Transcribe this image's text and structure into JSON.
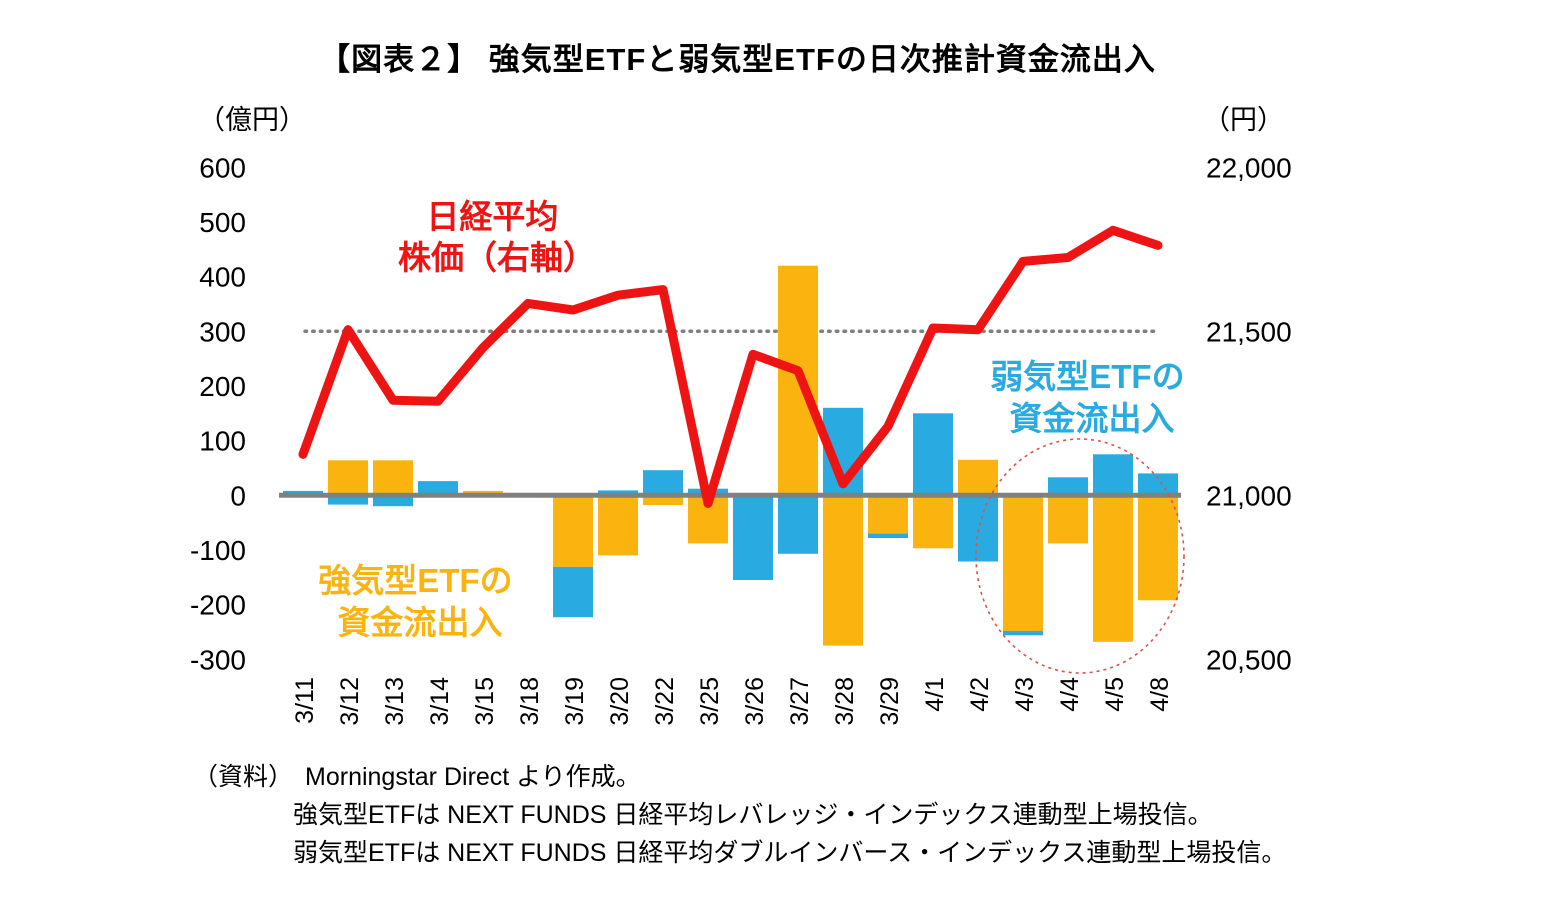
{
  "title": "【図表２】 強気型ETFと弱気型ETFの日次推計資金流出入",
  "axes": {
    "left_unit": "（億円）",
    "right_unit": "（円）"
  },
  "annotations": {
    "line_label": [
      "日経平均",
      "株価（右軸）"
    ],
    "bear_label": [
      "弱気型ETFの",
      "資金流出入"
    ],
    "bull_label": [
      "強気型ETFの",
      "資金流出入"
    ]
  },
  "footnotes": {
    "source_prefix": "（資料）",
    "lines": [
      "Morningstar Direct より作成。",
      "強気型ETFは NEXT FUNDS  日経平均レバレッジ・インデックス連動型上場投信。",
      "弱気型ETFは NEXT FUNDS  日経平均ダブルインバース・インデックス連動型上場投信。"
    ]
  },
  "colors": {
    "bull_bar": "#FBB40F",
    "bear_bar": "#29ABE2",
    "nikkei_line": "#EE1414",
    "zero_axis": "#808080",
    "reference_dotted": "#7F7F7F",
    "highlight_circle": "#DD5348",
    "text": "#000000"
  },
  "chart_data": {
    "type": "bar",
    "subtype": "stacked-bar-with-line-dual-axis",
    "title": "【図表２】 強気型ETFと弱気型ETFの日次推計資金流出入",
    "categories": [
      "3/11",
      "3/12",
      "3/13",
      "3/14",
      "3/15",
      "3/18",
      "3/19",
      "3/20",
      "3/22",
      "3/25",
      "3/26",
      "3/27",
      "3/28",
      "3/29",
      "4/1",
      "4/2",
      "4/3",
      "4/4",
      "4/5",
      "4/8"
    ],
    "series": [
      {
        "key": "bull",
        "name": "強気型ETFの資金流出入",
        "type": "bar",
        "axis": "left",
        "color": "#FBB40F",
        "values": [
          0,
          64,
          64,
          0,
          8,
          0,
          -131,
          -110,
          -18,
          -88,
          0,
          420,
          -275,
          -70,
          -97,
          65,
          -248,
          -88,
          -268,
          -192
        ]
      },
      {
        "key": "bear",
        "name": "弱気型ETFの資金流出入",
        "type": "bar",
        "axis": "left",
        "color": "#29ABE2",
        "values": [
          8,
          -17,
          -20,
          26,
          0,
          0,
          -92,
          9,
          46,
          12,
          -155,
          -107,
          160,
          -8,
          150,
          -121,
          -8,
          33,
          75,
          40
        ]
      },
      {
        "key": "nikkei",
        "name": "日経平均株価（右軸）",
        "type": "line",
        "axis": "right",
        "color": "#EE1414",
        "values": [
          21125,
          21505,
          21290,
          21287,
          21450,
          21585,
          21565,
          21610,
          21627,
          20975,
          21430,
          21380,
          21035,
          21210,
          21510,
          21505,
          21713,
          21725,
          21808,
          21762
        ]
      }
    ],
    "left_axis": {
      "unit": "億円",
      "range": [
        -300,
        600
      ],
      "ticks": [
        600,
        500,
        400,
        300,
        200,
        100,
        0,
        -100,
        -200,
        -300
      ]
    },
    "right_axis": {
      "unit": "円",
      "range": [
        20500,
        22000
      ],
      "ticks": [
        {
          "value": 22000,
          "label": "22,000"
        },
        {
          "value": 21500,
          "label": "21,500"
        },
        {
          "value": 21000,
          "label": "21,000"
        },
        {
          "value": 20500,
          "label": "20,500"
        }
      ]
    },
    "reference_line": {
      "left_value": 300,
      "right_value": 21500,
      "style": "dotted"
    },
    "highlight": {
      "shape": "dashed-ellipse",
      "around_dates": [
        "4/3",
        "4/4",
        "4/5",
        "4/8"
      ]
    },
    "grid": false,
    "legend": "none-annotated-on-chart"
  }
}
